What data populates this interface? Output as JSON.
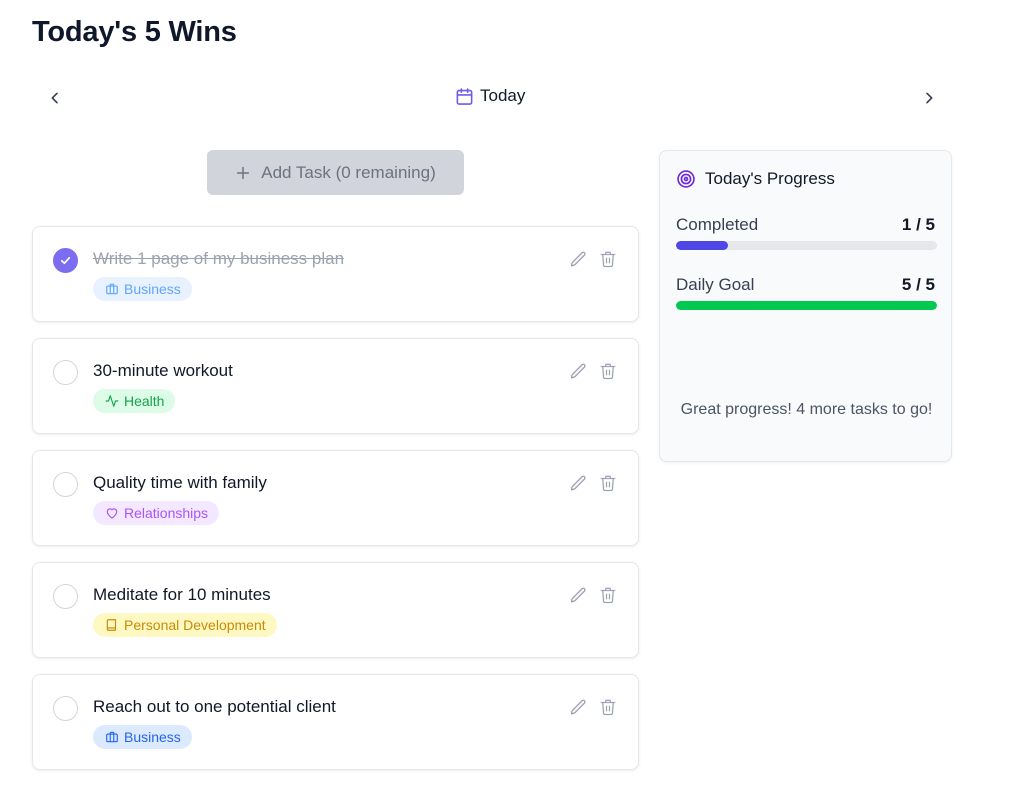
{
  "header": {
    "title": "Today's 5 Wins"
  },
  "nav": {
    "date_label": "Today",
    "prev_icon": "chevron-left-icon",
    "next_icon": "chevron-right-icon"
  },
  "add_task": {
    "label": "Add Task (0 remaining)"
  },
  "tasks": [
    {
      "title": "Write 1 page of my business plan",
      "tag": "Business",
      "tag_icon": "briefcase-icon",
      "completed": true
    },
    {
      "title": "30-minute workout",
      "tag": "Health",
      "tag_icon": "activity-icon",
      "completed": false
    },
    {
      "title": "Quality time with family",
      "tag": "Relationships",
      "tag_icon": "heart-icon",
      "completed": false
    },
    {
      "title": "Meditate for 10 minutes",
      "tag": "Personal Development",
      "tag_icon": "book-icon",
      "completed": false
    },
    {
      "title": "Reach out to one potential client",
      "tag": "Business",
      "tag_icon": "briefcase-icon",
      "completed": false
    }
  ],
  "progress": {
    "title": "Today's Progress",
    "completed_label": "Completed",
    "completed_value": "1 / 5",
    "completed_fraction": 0.2,
    "goal_label": "Daily Goal",
    "goal_value": "5 / 5",
    "goal_fraction": 1.0,
    "message": "Great progress! 4 more tasks to go!"
  },
  "colors": {
    "accent": "#7c6cf0",
    "completed_bar": "#4f46e5",
    "goal_bar": "#00c950",
    "business": "#2563eb",
    "health": "#16a34a",
    "relationships": "#a855f7",
    "personal_development": "#ca8a04"
  }
}
